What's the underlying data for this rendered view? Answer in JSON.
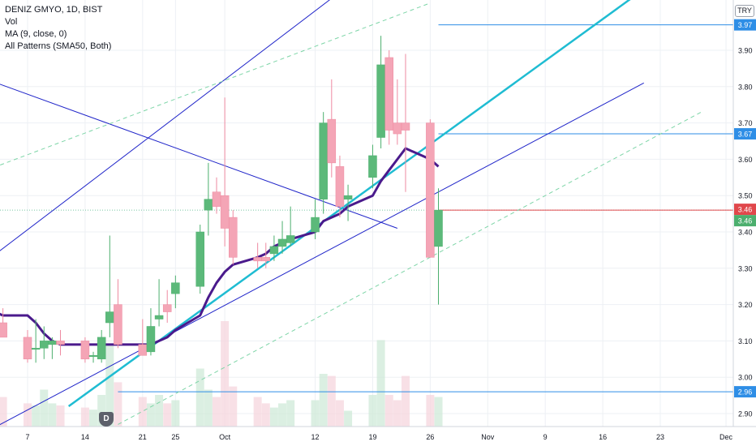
{
  "legend": {
    "symbol": "DENIZ GMYO, 1D, BIST",
    "vol": "Vol",
    "ma": "MA (9, close, 0)",
    "patterns": "All Patterns (SMA50, Both)"
  },
  "currency": "TRY",
  "event_badge": "D",
  "colors": {
    "up": "#5cb97a",
    "down": "#f4a5b6",
    "ma": "#4a1a8c",
    "trend": "#1f24c9",
    "trend_cyan": "#1fbcd2",
    "dashed": "#7dd5a7",
    "level": "#2e8ee6",
    "price_marker": "#e0474b"
  },
  "chart_data": {
    "type": "candlestick",
    "title": "DENIZ GMYO, 1D, BIST",
    "y_axis": {
      "ticks": [
        "2.90",
        "3.00",
        "3.10",
        "3.20",
        "3.30",
        "3.40",
        "3.50",
        "3.60",
        "3.70",
        "3.80",
        "3.90"
      ],
      "range": [
        2.86,
        4.02
      ]
    },
    "x_axis": {
      "labels": [
        {
          "label": "7",
          "date": "2020-09-07"
        },
        {
          "label": "14",
          "date": "2020-09-14"
        },
        {
          "label": "21",
          "date": "2020-09-21"
        },
        {
          "label": "25",
          "date": "2020-09-25"
        },
        {
          "label": "Oct",
          "date": "2020-10-01"
        },
        {
          "label": "12",
          "date": "2020-10-12"
        },
        {
          "label": "19",
          "date": "2020-10-19"
        },
        {
          "label": "26",
          "date": "2020-10-26"
        },
        {
          "label": "Nov",
          "date": "2020-11-02"
        },
        {
          "label": "9",
          "date": "2020-11-09"
        },
        {
          "label": "16",
          "date": "2020-11-16"
        },
        {
          "label": "23",
          "date": "2020-11-23"
        },
        {
          "label": "Dec",
          "date": "2020-12-01"
        }
      ]
    },
    "candles": [
      {
        "date": "2020-09-02",
        "open": 3.1,
        "high": 3.15,
        "low": 3.01,
        "close": 3.02
      },
      {
        "date": "2020-09-03",
        "open": 3.03,
        "high": 3.29,
        "low": 3.0,
        "close": 3.15
      },
      {
        "date": "2020-09-04",
        "open": 3.15,
        "high": 3.19,
        "low": 3.11,
        "close": 3.11
      },
      {
        "date": "2020-09-07",
        "open": 3.11,
        "high": 3.13,
        "low": 3.04,
        "close": 3.05
      },
      {
        "date": "2020-09-08",
        "open": 3.08,
        "high": 3.16,
        "low": 3.04,
        "close": 3.08
      },
      {
        "date": "2020-09-09",
        "open": 3.08,
        "high": 3.14,
        "low": 3.05,
        "close": 3.1
      },
      {
        "date": "2020-09-10",
        "open": 3.09,
        "high": 3.11,
        "low": 3.05,
        "close": 3.1
      },
      {
        "date": "2020-09-11",
        "open": 3.1,
        "high": 3.13,
        "low": 3.06,
        "close": 3.09
      },
      {
        "date": "2020-09-14",
        "open": 3.1,
        "high": 3.11,
        "low": 3.04,
        "close": 3.05
      },
      {
        "date": "2020-09-15",
        "open": 3.06,
        "high": 3.07,
        "low": 3.04,
        "close": 3.06
      },
      {
        "date": "2020-09-16",
        "open": 3.05,
        "high": 3.13,
        "low": 3.04,
        "close": 3.11
      },
      {
        "date": "2020-09-17",
        "open": 3.15,
        "high": 3.39,
        "low": 3.11,
        "close": 3.18
      },
      {
        "date": "2020-09-18",
        "open": 3.2,
        "high": 3.27,
        "low": 3.08,
        "close": 3.09
      },
      {
        "date": "2020-09-21",
        "open": 3.09,
        "high": 3.16,
        "low": 3.06,
        "close": 3.06
      },
      {
        "date": "2020-09-22",
        "open": 3.07,
        "high": 3.19,
        "low": 3.06,
        "close": 3.14
      },
      {
        "date": "2020-09-23",
        "open": 3.16,
        "high": 3.27,
        "low": 3.14,
        "close": 3.17
      },
      {
        "date": "2020-09-24",
        "open": 3.2,
        "high": 3.24,
        "low": 3.15,
        "close": 3.18
      },
      {
        "date": "2020-09-25",
        "open": 3.23,
        "high": 3.28,
        "low": 3.19,
        "close": 3.26
      },
      {
        "date": "2020-09-28",
        "open": 3.25,
        "high": 3.42,
        "low": 3.23,
        "close": 3.4
      },
      {
        "date": "2020-09-29",
        "open": 3.46,
        "high": 3.59,
        "low": 3.39,
        "close": 3.49
      },
      {
        "date": "2020-09-30",
        "open": 3.51,
        "high": 3.55,
        "low": 3.45,
        "close": 3.47
      },
      {
        "date": "2020-10-01",
        "open": 3.5,
        "high": 3.77,
        "low": 3.36,
        "close": 3.41
      },
      {
        "date": "2020-10-02",
        "open": 3.44,
        "high": 3.46,
        "low": 3.31,
        "close": 3.33
      },
      {
        "date": "2020-10-05",
        "open": 3.33,
        "high": 3.37,
        "low": 3.3,
        "close": 3.32
      },
      {
        "date": "2020-10-06",
        "open": 3.33,
        "high": 3.37,
        "low": 3.3,
        "close": 3.32
      },
      {
        "date": "2020-10-07",
        "open": 3.34,
        "high": 3.39,
        "low": 3.32,
        "close": 3.36
      },
      {
        "date": "2020-10-08",
        "open": 3.36,
        "high": 3.43,
        "low": 3.34,
        "close": 3.38
      },
      {
        "date": "2020-10-09",
        "open": 3.37,
        "high": 3.47,
        "low": 3.36,
        "close": 3.39
      },
      {
        "date": "2020-10-12",
        "open": 3.4,
        "high": 3.49,
        "low": 3.38,
        "close": 3.44
      },
      {
        "date": "2020-10-13",
        "open": 3.49,
        "high": 3.73,
        "low": 3.45,
        "close": 3.7
      },
      {
        "date": "2020-10-14",
        "open": 3.71,
        "high": 3.82,
        "low": 3.55,
        "close": 3.59
      },
      {
        "date": "2020-10-15",
        "open": 3.58,
        "high": 3.61,
        "low": 3.44,
        "close": 3.47
      },
      {
        "date": "2020-10-16",
        "open": 3.49,
        "high": 3.53,
        "low": 3.43,
        "close": 3.5
      },
      {
        "date": "2020-10-19",
        "open": 3.55,
        "high": 3.64,
        "low": 3.52,
        "close": 3.61
      },
      {
        "date": "2020-10-20",
        "open": 3.66,
        "high": 3.94,
        "low": 3.63,
        "close": 3.86
      },
      {
        "date": "2020-10-21",
        "open": 3.88,
        "high": 3.9,
        "low": 3.64,
        "close": 3.68
      },
      {
        "date": "2020-10-22",
        "open": 3.7,
        "high": 3.82,
        "low": 3.64,
        "close": 3.67
      },
      {
        "date": "2020-10-23",
        "open": 3.7,
        "high": 3.89,
        "low": 3.51,
        "close": 3.68
      },
      {
        "date": "2020-10-26",
        "open": 3.7,
        "high": 3.71,
        "low": 3.33,
        "close": 3.33
      },
      {
        "date": "2020-10-27",
        "open": 3.36,
        "high": 3.52,
        "low": 3.2,
        "close": 3.46
      }
    ],
    "volume": [
      {
        "date": "2020-09-02",
        "value": 0.4,
        "dir": "down"
      },
      {
        "date": "2020-09-03",
        "value": 0.45,
        "dir": "up"
      },
      {
        "date": "2020-09-04",
        "value": 0.28,
        "dir": "down"
      },
      {
        "date": "2020-09-07",
        "value": 0.22,
        "dir": "down"
      },
      {
        "date": "2020-09-08",
        "value": 0.2,
        "dir": "up"
      },
      {
        "date": "2020-09-09",
        "value": 0.35,
        "dir": "up"
      },
      {
        "date": "2020-09-10",
        "value": 0.22,
        "dir": "up"
      },
      {
        "date": "2020-09-11",
        "value": 0.2,
        "dir": "down"
      },
      {
        "date": "2020-09-14",
        "value": 0.18,
        "dir": "down"
      },
      {
        "date": "2020-09-15",
        "value": 0.16,
        "dir": "up"
      },
      {
        "date": "2020-09-16",
        "value": 0.3,
        "dir": "up"
      },
      {
        "date": "2020-09-17",
        "value": 0.78,
        "dir": "up"
      },
      {
        "date": "2020-09-18",
        "value": 0.42,
        "dir": "down"
      },
      {
        "date": "2020-09-21",
        "value": 0.28,
        "dir": "down"
      },
      {
        "date": "2020-09-22",
        "value": 0.22,
        "dir": "up"
      },
      {
        "date": "2020-09-23",
        "value": 0.3,
        "dir": "up"
      },
      {
        "date": "2020-09-24",
        "value": 0.22,
        "dir": "down"
      },
      {
        "date": "2020-09-25",
        "value": 0.25,
        "dir": "up"
      },
      {
        "date": "2020-09-28",
        "value": 0.55,
        "dir": "up"
      },
      {
        "date": "2020-09-29",
        "value": 0.35,
        "dir": "up"
      },
      {
        "date": "2020-09-30",
        "value": 0.28,
        "dir": "down"
      },
      {
        "date": "2020-10-01",
        "value": 1.0,
        "dir": "down"
      },
      {
        "date": "2020-10-02",
        "value": 0.38,
        "dir": "down"
      },
      {
        "date": "2020-10-05",
        "value": 0.28,
        "dir": "down"
      },
      {
        "date": "2020-10-06",
        "value": 0.22,
        "dir": "down"
      },
      {
        "date": "2020-10-07",
        "value": 0.18,
        "dir": "up"
      },
      {
        "date": "2020-10-08",
        "value": 0.22,
        "dir": "up"
      },
      {
        "date": "2020-10-09",
        "value": 0.25,
        "dir": "up"
      },
      {
        "date": "2020-10-12",
        "value": 0.25,
        "dir": "up"
      },
      {
        "date": "2020-10-13",
        "value": 0.5,
        "dir": "up"
      },
      {
        "date": "2020-10-14",
        "value": 0.48,
        "dir": "down"
      },
      {
        "date": "2020-10-15",
        "value": 0.25,
        "dir": "down"
      },
      {
        "date": "2020-10-16",
        "value": 0.15,
        "dir": "up"
      },
      {
        "date": "2020-10-19",
        "value": 0.3,
        "dir": "up"
      },
      {
        "date": "2020-10-20",
        "value": 0.82,
        "dir": "up"
      },
      {
        "date": "2020-10-21",
        "value": 0.3,
        "dir": "down"
      },
      {
        "date": "2020-10-22",
        "value": 0.25,
        "dir": "down"
      },
      {
        "date": "2020-10-23",
        "value": 0.48,
        "dir": "down"
      },
      {
        "date": "2020-10-26",
        "value": 0.3,
        "dir": "down"
      },
      {
        "date": "2020-10-27",
        "value": 0.28,
        "dir": "up"
      }
    ],
    "ma": [
      {
        "date": "2020-09-02",
        "value": 3.2
      },
      {
        "date": "2020-09-03",
        "value": 3.18
      },
      {
        "date": "2020-09-04",
        "value": 3.17
      },
      {
        "date": "2020-09-07",
        "value": 3.17
      },
      {
        "date": "2020-09-08",
        "value": 3.15
      },
      {
        "date": "2020-09-09",
        "value": 3.12
      },
      {
        "date": "2020-09-10",
        "value": 3.1
      },
      {
        "date": "2020-09-11",
        "value": 3.09
      },
      {
        "date": "2020-09-14",
        "value": 3.09
      },
      {
        "date": "2020-09-15",
        "value": 3.09
      },
      {
        "date": "2020-09-16",
        "value": 3.09
      },
      {
        "date": "2020-09-17",
        "value": 3.09
      },
      {
        "date": "2020-09-18",
        "value": 3.09
      },
      {
        "date": "2020-09-21",
        "value": 3.09
      },
      {
        "date": "2020-09-22",
        "value": 3.09
      },
      {
        "date": "2020-09-23",
        "value": 3.1
      },
      {
        "date": "2020-09-24",
        "value": 3.11
      },
      {
        "date": "2020-09-25",
        "value": 3.13
      },
      {
        "date": "2020-09-28",
        "value": 3.17
      },
      {
        "date": "2020-09-29",
        "value": 3.22
      },
      {
        "date": "2020-09-30",
        "value": 3.26
      },
      {
        "date": "2020-10-01",
        "value": 3.29
      },
      {
        "date": "2020-10-02",
        "value": 3.31
      },
      {
        "date": "2020-10-05",
        "value": 3.33
      },
      {
        "date": "2020-10-06",
        "value": 3.34
      },
      {
        "date": "2020-10-07",
        "value": 3.36
      },
      {
        "date": "2020-10-08",
        "value": 3.37
      },
      {
        "date": "2020-10-09",
        "value": 3.38
      },
      {
        "date": "2020-10-12",
        "value": 3.4
      },
      {
        "date": "2020-10-13",
        "value": 3.43
      },
      {
        "date": "2020-10-14",
        "value": 3.44
      },
      {
        "date": "2020-10-15",
        "value": 3.45
      },
      {
        "date": "2020-10-16",
        "value": 3.47
      },
      {
        "date": "2020-10-19",
        "value": 3.5
      },
      {
        "date": "2020-10-20",
        "value": 3.54
      },
      {
        "date": "2020-10-21",
        "value": 3.57
      },
      {
        "date": "2020-10-22",
        "value": 3.6
      },
      {
        "date": "2020-10-23",
        "value": 3.63
      },
      {
        "date": "2020-10-26",
        "value": 3.6
      },
      {
        "date": "2020-10-27",
        "value": 3.58
      }
    ],
    "horizontal_levels": [
      {
        "value": 3.97,
        "label": "3.97",
        "from": "2020-10-27"
      },
      {
        "value": 3.67,
        "label": "3.67",
        "from": "2020-10-27"
      },
      {
        "value": 2.96,
        "label": "2.96",
        "from": "2020-09-18"
      }
    ],
    "price_line": {
      "value": 3.46,
      "label": "3.46",
      "label_second": "3.46"
    },
    "trendlines": [
      {
        "style": "solid-thin",
        "color": "trend",
        "from": {
          "date": "2020-09-02",
          "value": 3.32
        },
        "to": {
          "date": "2020-11-02",
          "value": 4.37
        }
      },
      {
        "style": "solid-thin",
        "color": "trend",
        "from": {
          "date": "2020-09-02",
          "value": 2.85
        },
        "to": {
          "date": "2020-11-21",
          "value": 3.81
        }
      },
      {
        "style": "solid-thin",
        "color": "trend",
        "from": {
          "date": "2020-09-02",
          "value": 3.82
        },
        "to": {
          "date": "2020-10-22",
          "value": 3.41
        }
      },
      {
        "style": "solid-thick",
        "color": "trend_cyan",
        "from": {
          "date": "2020-09-12",
          "value": 2.92
        },
        "to": {
          "date": "2020-11-26",
          "value": 4.15
        }
      },
      {
        "style": "dashed",
        "color": "dashed",
        "from": {
          "date": "2020-09-02",
          "value": 3.57
        },
        "to": {
          "date": "2020-10-26",
          "value": 4.03
        }
      },
      {
        "style": "dashed",
        "color": "dashed",
        "from": {
          "date": "2020-09-18",
          "value": 2.87
        },
        "to": {
          "date": "2020-11-28",
          "value": 3.73
        }
      }
    ]
  }
}
